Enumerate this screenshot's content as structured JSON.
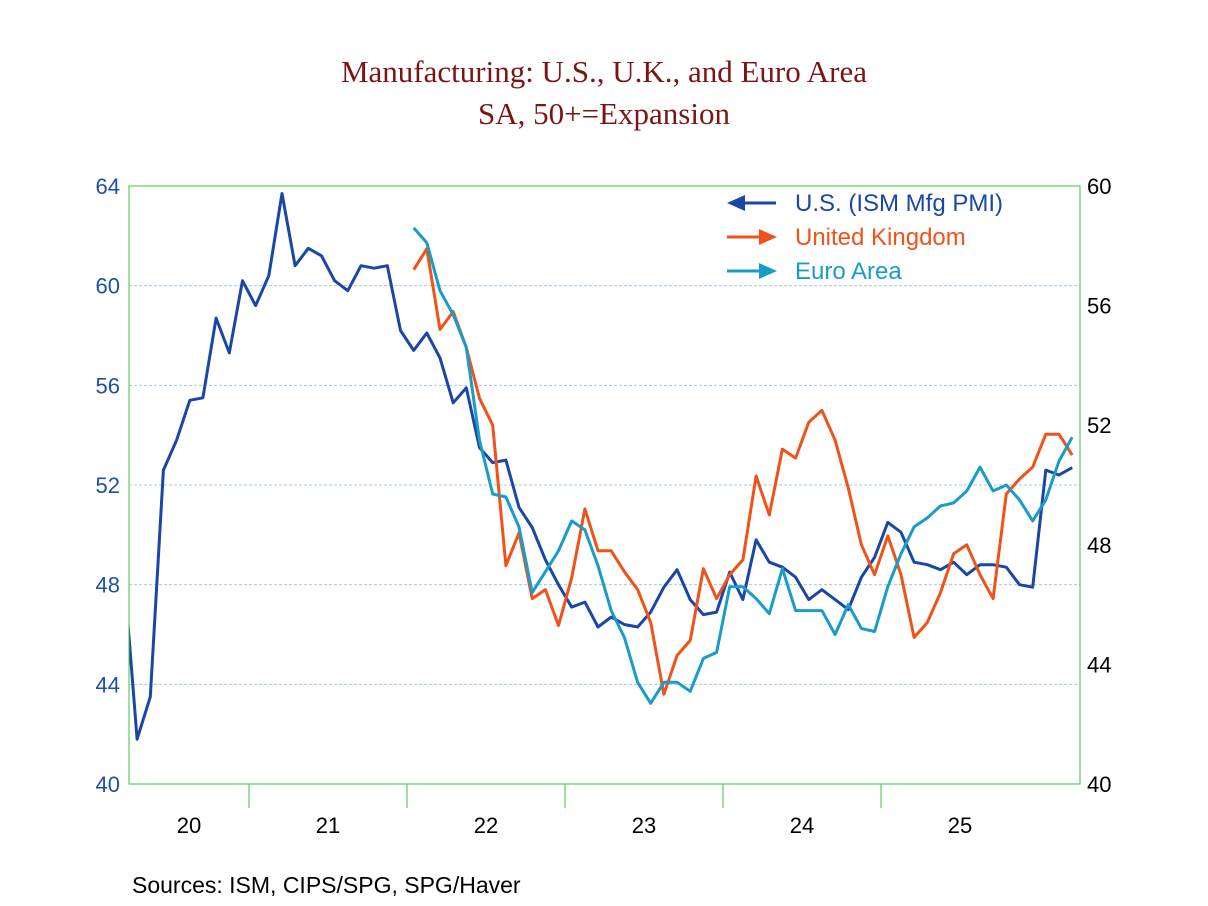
{
  "chart_data": {
    "type": "line",
    "title": "Manufacturing: U.S., U.K., and Euro Area",
    "subtitle": "SA, 50+=Expansion",
    "source": "Sources:  ISM, CIPS/SPG, SPG/Haver",
    "x_tick_labels": [
      "20",
      "21",
      "22",
      "23",
      "24",
      "25"
    ],
    "left_axis": {
      "ylim": [
        40,
        64
      ],
      "ticks": [
        "40",
        "44",
        "48",
        "52",
        "56",
        "60",
        "64"
      ],
      "color": "#1f4fa8"
    },
    "right_axis": {
      "ylim": [
        40,
        60
      ],
      "ticks": [
        "40",
        "44",
        "48",
        "52",
        "56",
        "60"
      ],
      "color": "#000000"
    },
    "grid": true,
    "legend_position": "top-right",
    "series": [
      {
        "name": "U.S. (ISM Mfg PMI)",
        "axis": "left",
        "color": "#1a46a8",
        "start": "2020-03",
        "values": [
          48.5,
          41.8,
          43.5,
          52.6,
          53.8,
          55.4,
          55.5,
          58.7,
          57.3,
          60.2,
          59.2,
          60.4,
          63.7,
          60.8,
          61.5,
          61.2,
          60.2,
          59.8,
          60.8,
          60.7,
          60.8,
          58.2,
          57.4,
          58.1,
          57.1,
          55.3,
          55.9,
          53.5,
          52.9,
          53.0,
          51.1,
          50.3,
          49.0,
          48.0,
          47.1,
          47.3,
          46.3,
          46.7,
          46.4,
          46.3,
          46.9,
          47.9,
          48.6,
          47.4,
          46.8,
          46.9,
          48.5,
          47.4,
          49.8,
          48.9,
          48.7,
          48.3,
          47.4,
          47.8,
          47.4,
          47.0,
          48.3,
          49.1,
          50.5,
          50.1,
          48.9,
          48.8,
          48.6,
          48.9,
          48.4,
          48.8,
          48.8,
          48.7,
          48.0,
          47.9,
          52.6,
          52.4,
          52.7
        ]
      },
      {
        "name": "United Kingdom",
        "axis": "right",
        "color": "#f0521a",
        "start": "2022-01",
        "values": [
          57.2,
          57.9,
          55.2,
          55.8,
          54.6,
          52.9,
          52.0,
          47.3,
          48.4,
          46.2,
          46.5,
          45.3,
          46.9,
          49.2,
          47.8,
          47.8,
          47.1,
          46.5,
          45.4,
          43.0,
          44.3,
          44.8,
          47.2,
          46.2,
          47.0,
          47.5,
          50.3,
          49.0,
          51.2,
          50.9,
          52.1,
          52.5,
          51.5,
          49.9,
          48.0,
          47.0,
          48.3,
          47.0,
          44.9,
          45.4,
          46.4,
          47.7,
          48.0,
          47.0,
          46.2,
          49.7,
          50.2,
          50.6,
          51.7,
          51.7,
          51.0
        ]
      },
      {
        "name": "Euro Area",
        "axis": "right",
        "color": "#1a9cc8",
        "start": "2022-01",
        "values": [
          58.6,
          58.1,
          56.5,
          55.7,
          54.6,
          51.5,
          49.7,
          49.6,
          48.6,
          46.4,
          47.1,
          47.8,
          48.8,
          48.5,
          47.3,
          45.8,
          44.9,
          43.4,
          42.7,
          43.4,
          43.4,
          43.1,
          44.2,
          44.4,
          46.6,
          46.6,
          46.2,
          45.7,
          47.2,
          45.8,
          45.8,
          45.8,
          45.0,
          46.0,
          45.2,
          45.1,
          46.6,
          47.7,
          48.6,
          48.9,
          49.3,
          49.4,
          49.8,
          50.6,
          49.8,
          50.0,
          49.5,
          48.8,
          49.5,
          50.8,
          51.6
        ]
      }
    ]
  }
}
